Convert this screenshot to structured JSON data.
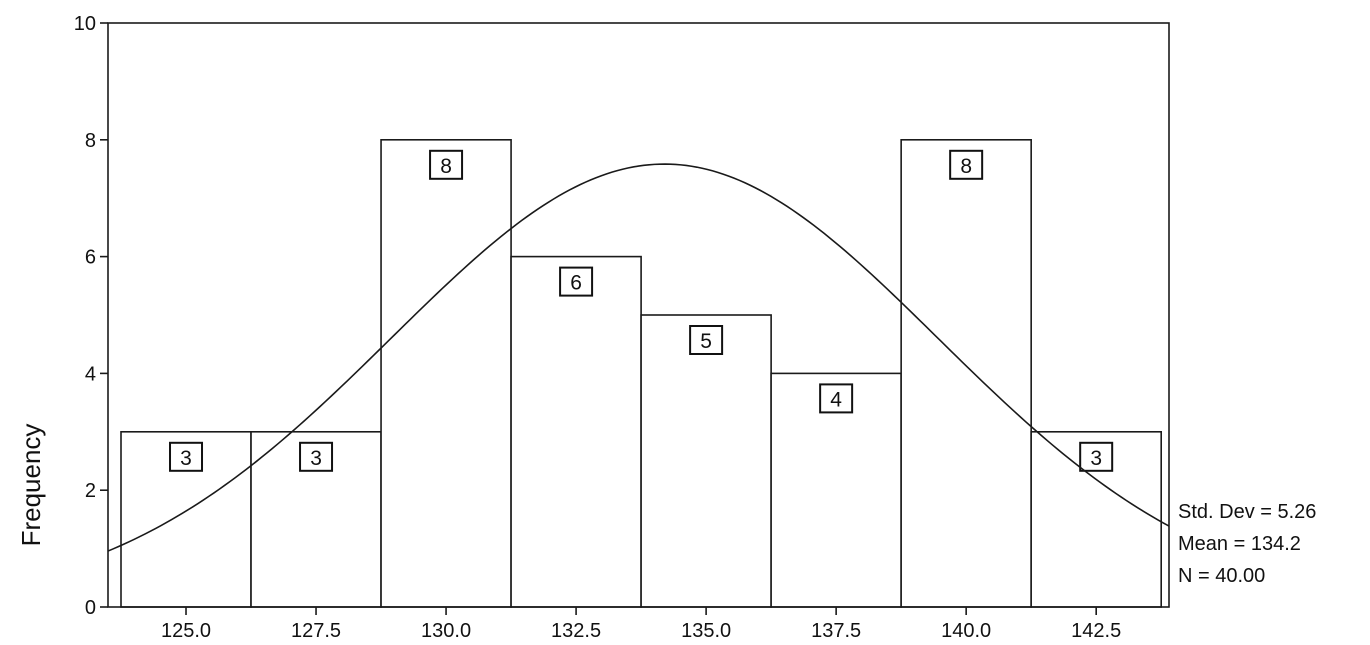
{
  "chart_data": {
    "type": "bar",
    "ylabel": "Frequency",
    "xlim": [
      123.5,
      143.9
    ],
    "ylim": [
      0,
      10
    ],
    "bin_width": 2.5,
    "bins": [
      {
        "center": 125.0,
        "value": 3
      },
      {
        "center": 127.5,
        "value": 3
      },
      {
        "center": 130.0,
        "value": 8
      },
      {
        "center": 132.5,
        "value": 6
      },
      {
        "center": 135.0,
        "value": 5
      },
      {
        "center": 137.5,
        "value": 4
      },
      {
        "center": 140.0,
        "value": 8
      },
      {
        "center": 142.5,
        "value": 3
      }
    ],
    "x_ticks": [
      "125.0",
      "127.5",
      "130.0",
      "132.5",
      "135.0",
      "137.5",
      "140.0",
      "142.5"
    ],
    "y_ticks": [
      "0",
      "2",
      "4",
      "6",
      "8",
      "10"
    ],
    "normal_curve": {
      "mean": 134.2,
      "std_dev": 5.26,
      "n": 40
    },
    "stats": [
      "Std. Dev = 5.26",
      "Mean = 134.2",
      "N = 40.00"
    ],
    "grid": false,
    "legend": "none"
  }
}
